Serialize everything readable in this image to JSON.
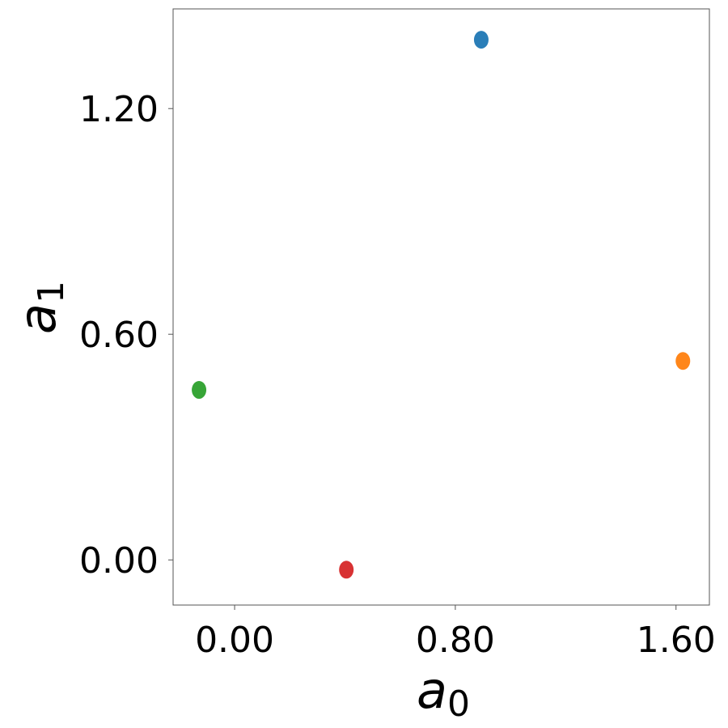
{
  "chart_data": {
    "type": "scatter",
    "x": [
      0.894,
      1.625,
      -0.129,
      0.405
    ],
    "values": [
      1.383,
      0.529,
      0.452,
      -0.026
    ],
    "colors": [
      "#1f77b4",
      "#ff7f0e",
      "#2ca02c",
      "#d62728"
    ],
    "xlim": [
      -0.223,
      1.721
    ],
    "ylim": [
      -0.12,
      1.465
    ],
    "xticks": [
      {
        "value": 0,
        "label": "0.00"
      },
      {
        "value": 0.8,
        "label": "0.80"
      },
      {
        "value": 1.6,
        "label": "1.60"
      }
    ],
    "yticks": [
      {
        "value": 0,
        "label": "0.00"
      },
      {
        "value": 0.6,
        "label": "0.60"
      },
      {
        "value": 1.2,
        "label": "1.20"
      }
    ],
    "xlabel": {
      "base": "a",
      "subscript": "0"
    },
    "ylabel": {
      "base": "a",
      "subscript": "1"
    }
  }
}
